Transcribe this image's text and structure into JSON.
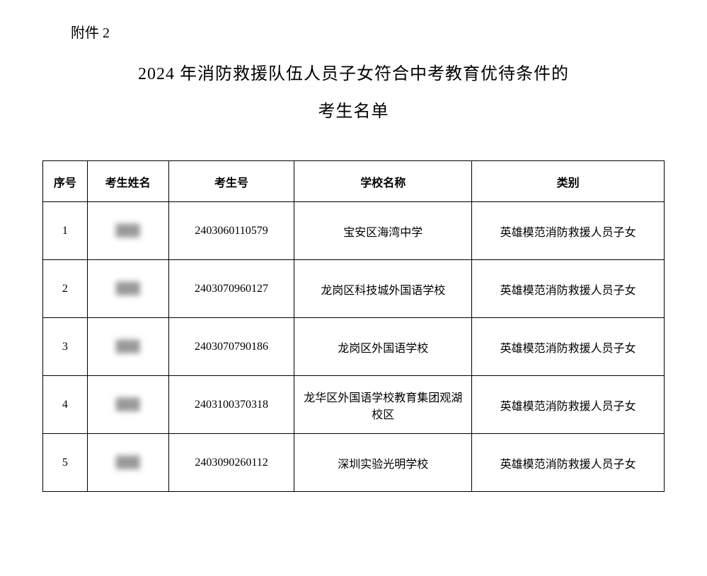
{
  "attachment_label": "附件 2",
  "title_line1": "2024 年消防救援队伍人员子女符合中考教育优待条件的",
  "title_line2": "考生名单",
  "table": {
    "columns": [
      "序号",
      "考生姓名",
      "考生号",
      "学校名称",
      "类别"
    ],
    "rows": [
      {
        "seq": "1",
        "name": "███",
        "exam_id": "2403060110579",
        "school": "宝安区海湾中学",
        "category": "英雄模范消防救援人员子女"
      },
      {
        "seq": "2",
        "name": "███",
        "exam_id": "2403070960127",
        "school": "龙岗区科技城外国语学校",
        "category": "英雄模范消防救援人员子女"
      },
      {
        "seq": "3",
        "name": "███",
        "exam_id": "2403070790186",
        "school": "龙岗区外国语学校",
        "category": "英雄模范消防救援人员子女"
      },
      {
        "seq": "4",
        "name": "███",
        "exam_id": "2403100370318",
        "school": "龙华区外国语学校教育集团观湖校区",
        "category": "英雄模范消防救援人员子女"
      },
      {
        "seq": "5",
        "name": "███",
        "exam_id": "2403090260112",
        "school": "深圳实验光明学校",
        "category": "英雄模范消防救援人员子女"
      }
    ]
  }
}
